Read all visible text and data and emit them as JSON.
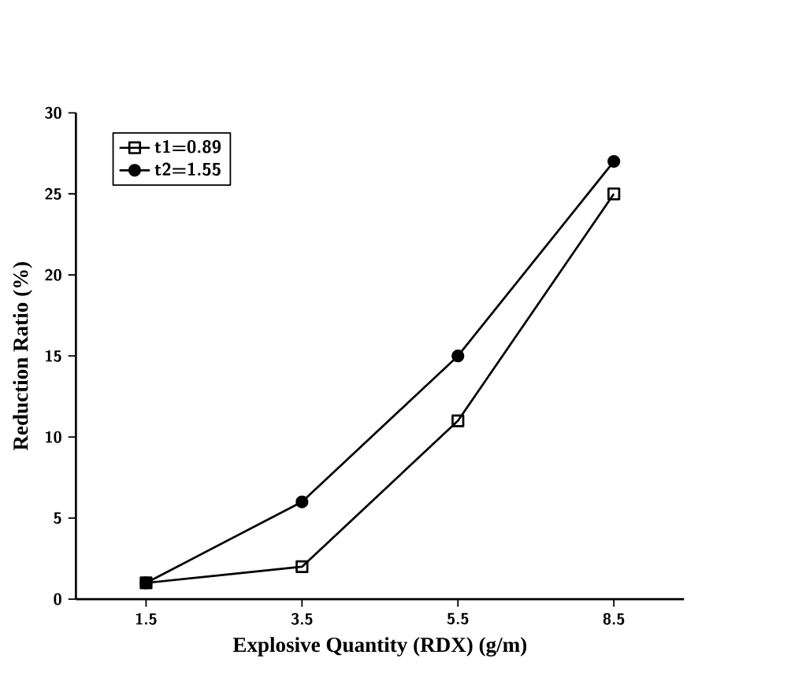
{
  "chart_data": {
    "type": "line",
    "xlabel": "Explosive Quantity (RDX)  (g/m)",
    "ylabel": "Reduction Ratio (%)",
    "categories": [
      "1.5",
      "3.5",
      "5.5",
      "8.5"
    ],
    "series": [
      {
        "name": "t1=0.89",
        "color": "#000000",
        "marker": "square",
        "values": [
          1,
          2,
          11,
          25
        ]
      },
      {
        "name": "t2=1.55",
        "color": "#000000",
        "marker": "circle",
        "values": [
          1,
          6,
          15,
          27
        ]
      }
    ],
    "ylim": [
      0,
      30
    ],
    "yticks": [
      0,
      5,
      10,
      15,
      20,
      25,
      30
    ],
    "grid": false,
    "legend": "top left",
    "line_style": "solid"
  }
}
